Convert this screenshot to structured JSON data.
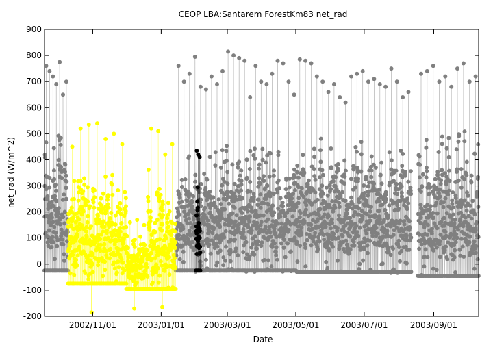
{
  "chart_data": {
    "type": "scatter",
    "title": "CEOP LBA:Santarem ForestKm83  net_rad",
    "xlabel": "Date",
    "ylabel": "net_rad (W/m^2)",
    "xlim": [
      "2002-09-19",
      "2003-10-11"
    ],
    "ylim": [
      -200,
      900
    ],
    "yticks": [
      -200,
      -100,
      0,
      100,
      200,
      300,
      400,
      500,
      600,
      700,
      800,
      900
    ],
    "xticks": [
      {
        "date": "2002-11-01",
        "label": "2002/11/01"
      },
      {
        "date": "2003-01-01",
        "label": "2003/01/01"
      },
      {
        "date": "2003-03-01",
        "label": "2003/03/01"
      },
      {
        "date": "2003-05-01",
        "label": "2003/05/01"
      },
      {
        "date": "2003-07-01",
        "label": "2003/07/01"
      },
      {
        "date": "2003-09-01",
        "label": "2003/09/01"
      }
    ],
    "grid": false,
    "legend": "none",
    "series": [
      {
        "color": "#808080",
        "style": "points-with-lines",
        "segments": [
          {
            "start": "2002-09-19",
            "end": "2002-10-10",
            "min": -30,
            "max": 560,
            "peaks": [
              760,
              740,
              720,
              690,
              775,
              650,
              700
            ]
          },
          {
            "start": "2003-01-14",
            "end": "2003-05-02",
            "min": -30,
            "max": 480,
            "peaks": [
              760,
              700,
              730,
              795,
              680,
              670,
              720,
              690,
              740,
              815,
              800,
              790,
              780,
              640,
              760,
              700,
              690,
              730,
              780,
              770,
              700,
              650
            ]
          },
          {
            "start": "2003-05-02",
            "end": "2003-08-12",
            "min": -35,
            "max": 520,
            "peaks": [
              785,
              780,
              770,
              720,
              700,
              660,
              690,
              640,
              620,
              720,
              730,
              740,
              700,
              710,
              690,
              680,
              750,
              700,
              640,
              660
            ]
          },
          {
            "start": "2003-08-18",
            "end": "2003-10-11",
            "min": -50,
            "max": 540,
            "peaks": [
              730,
              740,
              760,
              700,
              720,
              680,
              750,
              770,
              700,
              720
            ]
          }
        ]
      },
      {
        "color": "#ffff00",
        "style": "points-with-lines",
        "segments": [
          {
            "start": "2002-10-10",
            "end": "2002-12-01",
            "min": -80,
            "max": 390,
            "peaks": [
              450,
              520,
              535,
              540,
              480,
              500,
              460
            ]
          },
          {
            "start": "2002-12-01",
            "end": "2002-12-20",
            "min": -100,
            "max": 150,
            "peaks": [
              160,
              170,
              150
            ]
          },
          {
            "start": "2002-12-20",
            "end": "2003-01-14",
            "min": -100,
            "max": 380,
            "peaks": [
              520,
              510,
              420,
              460
            ]
          }
        ],
        "outliers": [
          {
            "date": "2002-10-31",
            "value": -185
          },
          {
            "date": "2002-12-08",
            "value": -170
          },
          {
            "date": "2003-01-02",
            "value": -165
          }
        ]
      },
      {
        "color": "#000000",
        "style": "points-with-lines",
        "segments": [
          {
            "start": "2003-02-01",
            "end": "2003-02-05",
            "min": -30,
            "max": 420,
            "peaks": [
              435,
              420,
              410
            ]
          }
        ]
      }
    ]
  }
}
